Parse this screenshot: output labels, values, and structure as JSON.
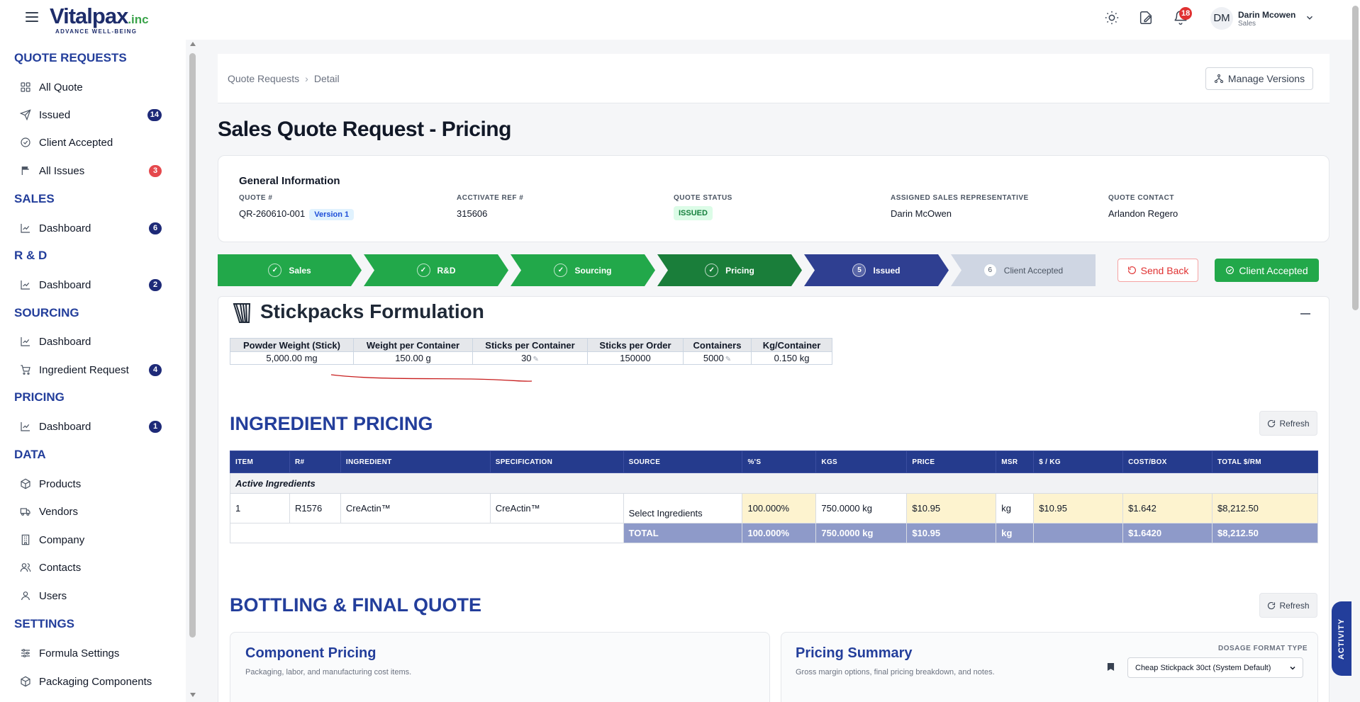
{
  "brand": {
    "name": "Vitalpax",
    "suffix": ".inc",
    "tagline": "ADVANCE WELL-BEING"
  },
  "header": {
    "notification_count": "18",
    "user": {
      "initials": "DM",
      "name": "Darin Mcowen",
      "role": "Sales"
    }
  },
  "sidebar": {
    "sections": [
      {
        "title": "QUOTE REQUESTS",
        "items": [
          {
            "label": "All Quote",
            "icon": "grid-icon",
            "badge": ""
          },
          {
            "label": "Issued",
            "icon": "send-icon",
            "badge": "14"
          },
          {
            "label": "Client Accepted",
            "icon": "check-circle-icon",
            "badge": ""
          },
          {
            "label": "All Issues",
            "icon": "flag-icon",
            "badge": "3"
          }
        ]
      },
      {
        "title": "SALES",
        "items": [
          {
            "label": "Dashboard",
            "icon": "chart-line-icon",
            "badge": "6"
          }
        ]
      },
      {
        "title": "R & D",
        "items": [
          {
            "label": "Dashboard",
            "icon": "chart-line-icon",
            "badge": "2"
          }
        ]
      },
      {
        "title": "SOURCING",
        "items": [
          {
            "label": "Dashboard",
            "icon": "chart-line-icon",
            "badge": ""
          },
          {
            "label": "Ingredient Request",
            "icon": "cart-icon",
            "badge": "4"
          }
        ]
      },
      {
        "title": "PRICING",
        "items": [
          {
            "label": "Dashboard",
            "icon": "chart-line-icon",
            "badge": "1"
          }
        ]
      },
      {
        "title": "DATA",
        "items": [
          {
            "label": "Products",
            "icon": "box-icon",
            "badge": ""
          },
          {
            "label": "Vendors",
            "icon": "truck-icon",
            "badge": ""
          },
          {
            "label": "Company",
            "icon": "building-icon",
            "badge": ""
          },
          {
            "label": "Contacts",
            "icon": "contacts-icon",
            "badge": ""
          },
          {
            "label": "Users",
            "icon": "user-icon",
            "badge": ""
          }
        ]
      },
      {
        "title": "SETTINGS",
        "items": [
          {
            "label": "Formula Settings",
            "icon": "sliders-icon",
            "badge": ""
          },
          {
            "label": "Packaging Components",
            "icon": "box-icon",
            "badge": ""
          }
        ]
      }
    ]
  },
  "breadcrumb": {
    "root": "Quote Requests",
    "current": "Detail"
  },
  "manage_versions_label": "Manage Versions",
  "page_title": "Sales Quote Request - Pricing",
  "general_info": {
    "title": "General Information",
    "quote_label": "QUOTE #",
    "quote_value": "QR-260610-001",
    "version": "Version 1",
    "ref_label": "ACCTIVATE REF #",
    "ref_value": "315606",
    "status_label": "QUOTE STATUS",
    "status_value": "ISSUED",
    "rep_label": "ASSIGNED SALES REPRESENTATIVE",
    "rep_value": "Darin McOwen",
    "contact_label": "QUOTE CONTACT",
    "contact_value": "Arlandon Regero"
  },
  "steps": [
    {
      "label": "Sales",
      "marker": "✓",
      "state": "done"
    },
    {
      "label": "R&D",
      "marker": "✓",
      "state": "done"
    },
    {
      "label": "Sourcing",
      "marker": "✓",
      "state": "done"
    },
    {
      "label": "Pricing",
      "marker": "✓",
      "state": "done-current"
    },
    {
      "label": "Issued",
      "marker": "5",
      "state": "active"
    },
    {
      "label": "Client Accepted",
      "marker": "6",
      "state": "pending"
    }
  ],
  "actions": {
    "send_back": "Send Back",
    "client_accepted": "Client Accepted"
  },
  "formulation": {
    "title": "Stickpacks Formulation",
    "headers": [
      "Powder Weight (Stick)",
      "Weight per Container",
      "Sticks per Container",
      "Sticks per Order",
      "Containers",
      "Kg/Container"
    ],
    "values": [
      "5,000.00 mg",
      "150.00 g",
      "30",
      "150000",
      "5000",
      "0.150 kg"
    ]
  },
  "ingredient_pricing": {
    "title": "INGREDIENT PRICING",
    "refresh_label": "Refresh",
    "columns": [
      "ITEM",
      "R#",
      "INGREDIENT",
      "SPECIFICATION",
      "SOURCE",
      "%'S",
      "KGS",
      "PRICE",
      "MSR",
      "$ / KG",
      "COST/BOX",
      "TOTAL $/RM"
    ],
    "group_label": "Active Ingredients",
    "rows": [
      [
        "1",
        "R1576",
        "CreActin™",
        "CreActin™",
        "Select Ingredients",
        "100.000%",
        "750.0000 kg",
        "$10.95",
        "kg",
        "$10.95",
        "$1.642",
        "$8,212.50"
      ]
    ],
    "total": [
      "TOTAL",
      "100.000%",
      "750.0000 kg",
      "$10.95",
      "kg",
      "",
      "$1.6420",
      "$8,212.50"
    ]
  },
  "bottling": {
    "title": "BOTTLING & FINAL QUOTE",
    "refresh_label": "Refresh",
    "component_title": "Component Pricing",
    "component_desc": "Packaging, labor, and manufacturing cost items.",
    "summary_title": "Pricing Summary",
    "summary_desc": "Gross margin options, final pricing breakdown, and notes.",
    "dosage_label": "DOSAGE FORMAT TYPE",
    "dosage_value": "Cheap Stickpack 30ct (System Default)"
  },
  "activity_label": "ACTIVITY",
  "colors": {
    "primary": "#233e9b",
    "success": "#22a84a",
    "danger": "#e03131",
    "step_done": "#22a84a",
    "step_current": "#1a7e3a",
    "step_active": "#2f3f91",
    "step_pending": "#cfd6e3"
  }
}
